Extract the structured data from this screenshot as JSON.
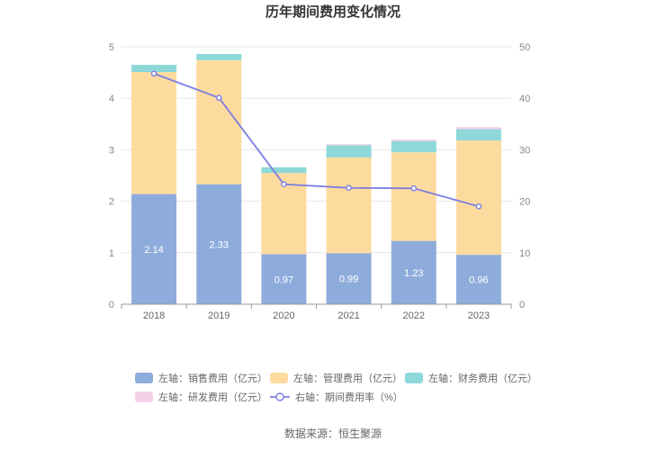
{
  "chart_data": {
    "type": "bar",
    "title": "历年期间费用变化情况",
    "categories": [
      "2018",
      "2019",
      "2020",
      "2021",
      "2022",
      "2023"
    ],
    "left_axis": {
      "ylim": [
        0,
        5
      ],
      "ticks": [
        0,
        1,
        2,
        3,
        4,
        5
      ]
    },
    "right_axis": {
      "ylim": [
        0,
        50
      ],
      "ticks": [
        0,
        10,
        20,
        30,
        40,
        50
      ]
    },
    "series": [
      {
        "name": "左轴：销售费用（亿元）",
        "type": "bar",
        "axis": "left",
        "color": "#8eacdb",
        "values": [
          2.14,
          2.33,
          0.97,
          0.99,
          1.23,
          0.96
        ],
        "labels": [
          "2.14",
          "2.33",
          "0.97",
          "0.99",
          "1.23",
          "0.96"
        ]
      },
      {
        "name": "左轴：管理费用（亿元）",
        "type": "bar",
        "axis": "left",
        "color": "#fddb9f",
        "values": [
          2.37,
          2.41,
          1.58,
          1.86,
          1.72,
          2.22
        ]
      },
      {
        "name": "左轴：财务费用（亿元）",
        "type": "bar",
        "axis": "left",
        "color": "#8ed8d9",
        "values": [
          0.14,
          0.12,
          0.11,
          0.24,
          0.22,
          0.22
        ]
      },
      {
        "name": "左轴：研发费用（亿元）",
        "type": "bar",
        "axis": "left",
        "color": "#f4d0e8",
        "values": [
          0.0,
          0.0,
          0.0,
          0.02,
          0.03,
          0.04
        ]
      },
      {
        "name": "右轴：期间费用率（%）",
        "type": "line",
        "axis": "right",
        "color": "#7b7ee0",
        "values": [
          44.8,
          40.1,
          23.3,
          22.6,
          22.5,
          19.0
        ]
      }
    ],
    "legend_position": "bottom"
  },
  "source_text": "数据来源：恒生聚源"
}
